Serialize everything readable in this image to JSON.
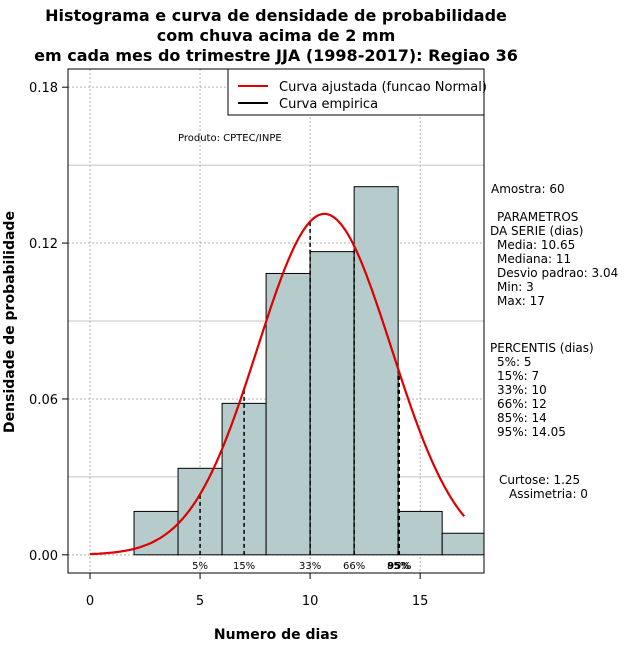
{
  "colors": {
    "bar_fill": "#b6cccc",
    "curve": "#dd0000",
    "grid": "#b0b0b0",
    "axis": "#000000"
  },
  "chart_data": {
    "type": "bar",
    "title": [
      "Histograma e curva de densidade de probabilidade",
      "com chuva acima de 2 mm",
      "em cada mes do trimestre JJA (1998-2017): Regiao 36"
    ],
    "xlabel": "Numero de dias",
    "ylabel": "Densidade de probabilidade",
    "xlim": [
      -1,
      17.9
    ],
    "ylim": [
      -0.007,
      0.187
    ],
    "x_ticks": [
      0,
      5,
      10,
      15
    ],
    "y_ticks": [
      0.0,
      0.06,
      0.12,
      0.18
    ],
    "y_tick_labels": [
      "0.00",
      "0.06",
      "0.12",
      "0.18"
    ],
    "grid": true,
    "histogram": {
      "breaks": [
        2,
        4,
        6,
        8,
        10,
        12,
        14,
        16,
        18
      ],
      "density": [
        0.0167,
        0.0333,
        0.0583,
        0.1083,
        0.1167,
        0.1417,
        0.0167,
        0.0083
      ]
    },
    "normal_curve": {
      "name": "Curva ajustada (funcao Normal)",
      "mean": 10.65,
      "sd": 3.04,
      "x_range": [
        0,
        17
      ]
    },
    "empirical_curve": {
      "name": "Curva empirica"
    },
    "percentile_lines": [
      {
        "label": "5%",
        "x": 5,
        "bold": false
      },
      {
        "label": "15%",
        "x": 7,
        "bold": false
      },
      {
        "label": "33%",
        "x": 10,
        "bold": false
      },
      {
        "label": "66%",
        "x": 12,
        "bold": false
      },
      {
        "label": "85%",
        "x": 14,
        "bold": false
      },
      {
        "label": "95%",
        "x": 14.05,
        "bold": true
      }
    ],
    "annotation": "Produto: CPTEC/INPE"
  },
  "side_panel": {
    "sample": "Amostra: 60",
    "params_title_1": "PARAMETROS",
    "params_title_2": "DA SERIE (dias)",
    "params": [
      "Media: 10.65",
      "Mediana: 11",
      "Desvio padrao: 3.04",
      "Min: 3",
      "Max: 17"
    ],
    "percentiles_title": "PERCENTIS (dias)",
    "percentiles": [
      "5%: 5",
      "15%: 7",
      "33%: 10",
      "66%: 12",
      "85%: 14",
      "95%: 14.05"
    ],
    "kurtosis": "Curtose: 1.25",
    "skewness": "Assimetria: 0"
  }
}
